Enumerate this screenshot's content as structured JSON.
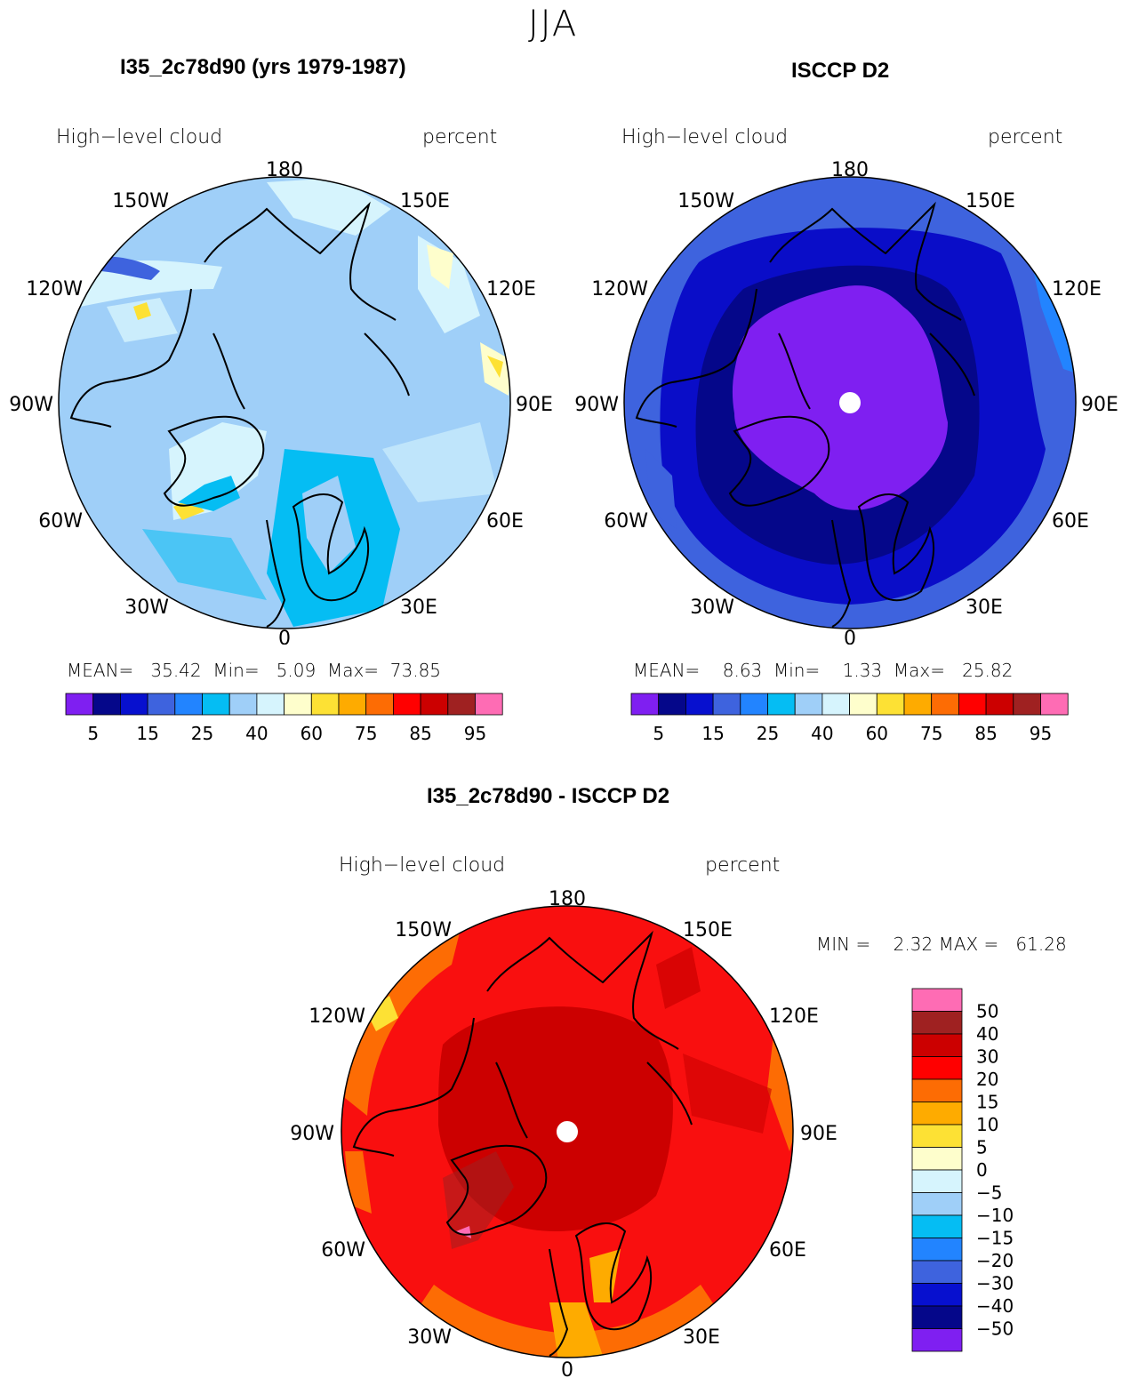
{
  "season": "JJA",
  "panels": [
    {
      "title": "I35_2c78d90 (yrs 1979-1987)",
      "variable": "High−level cloud",
      "units": "percent",
      "mean_label": "MEAN=",
      "mean": "35.42",
      "min_label": "Min=",
      "min": "5.09",
      "max_label": "Max=",
      "max": "73.85",
      "base_color": "#9fcff8",
      "field": "model"
    },
    {
      "title": "ISCCP D2",
      "variable": "High−level cloud",
      "units": "percent",
      "mean_label": "MEAN=",
      "mean": "8.63",
      "min_label": "Min=",
      "min": "1.33",
      "max_label": "Max=",
      "max": "25.82",
      "base_color": "#0a0dc8",
      "field": "obs"
    }
  ],
  "difference": {
    "title": "I35_2c78d90 - ISCCP D2",
    "variable": "High−level cloud",
    "units": "percent",
    "min_label": "MIN =",
    "min": "2.32",
    "max_label": "MAX =",
    "max": "61.28",
    "base_color": "#f90f0f"
  },
  "longitude_labels": {
    "top": "180",
    "bottom": "0",
    "left": "90W",
    "right": "90E",
    "upper_left_1": "150W",
    "upper_left_2": "120W",
    "lower_left_1": "60W",
    "lower_left_2": "30W",
    "upper_right_1": "150E",
    "upper_right_2": "120E",
    "lower_right_1": "60E",
    "lower_right_2": "30E"
  },
  "colorbar_abs": {
    "colors": [
      "#7f1ff1",
      "#05078a",
      "#0710cf",
      "#3e63de",
      "#2284ff",
      "#05bdf3",
      "#9fcff8",
      "#d6f4fd",
      "#fefecc",
      "#fde134",
      "#feab00",
      "#fd6c04",
      "#ff0000",
      "#cc0000",
      "#9f2121",
      "#fe6cb4"
    ],
    "labels": [
      "5",
      "15",
      "25",
      "40",
      "60",
      "75",
      "85",
      "95"
    ]
  },
  "colorbar_diff": {
    "colors_top_to_bottom": [
      "#fe6cb4",
      "#9f2121",
      "#cc0000",
      "#ff0000",
      "#fd6c04",
      "#feab00",
      "#fde134",
      "#fefecc",
      "#d6f4fd",
      "#9fcff8",
      "#05bdf3",
      "#2284ff",
      "#3e63de",
      "#0710cf",
      "#05078a",
      "#7f1ff1"
    ],
    "labels_top_to_bottom": [
      "50",
      "40",
      "30",
      "20",
      "15",
      "10",
      "5",
      "0",
      "−5",
      "−10",
      "−15",
      "−20",
      "−30",
      "−40",
      "−50"
    ]
  }
}
